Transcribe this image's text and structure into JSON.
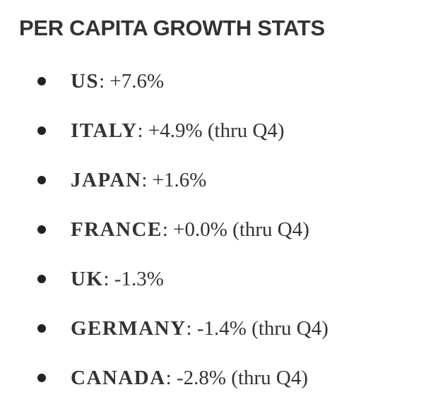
{
  "title": "PER CAPITA GROWTH STATS",
  "items": [
    {
      "country": "US",
      "text": ": +7.6%"
    },
    {
      "country": "ITALY",
      "text": ": +4.9% (thru Q4)"
    },
    {
      "country": "JAPAN",
      "text": ": +1.6%"
    },
    {
      "country": "FRANCE",
      "text": ": +0.0% (thru Q4)"
    },
    {
      "country": "UK",
      "text": ": -1.3%"
    },
    {
      "country": "GERMANY",
      "text": ": -1.4% (thru Q4)"
    },
    {
      "country": "CANADA",
      "text": ": -2.8% (thru Q4)"
    }
  ]
}
